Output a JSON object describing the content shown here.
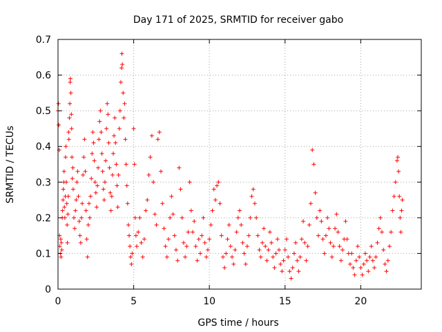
{
  "chart_data": {
    "type": "scatter",
    "title": "Day 171 of 2025, SRMTID for receiver gabo",
    "xlabel": "GPS time / hours",
    "ylabel": "SRMTID / TECUs",
    "xlim": [
      0,
      24
    ],
    "ylim": [
      0,
      0.7
    ],
    "xticks": [
      0,
      5,
      10,
      15,
      20
    ],
    "yticks": [
      0,
      0.1,
      0.2,
      0.3,
      0.4,
      0.5,
      0.6,
      0.7
    ],
    "xtick_labels": [
      "0",
      "5",
      "10",
      "15",
      "20"
    ],
    "ytick_labels": [
      "0",
      "0.1",
      "0.2",
      "0.3",
      "0.4",
      "0.5",
      "0.6",
      "0.7"
    ],
    "grid": true,
    "marker": "+",
    "color": "#ff0000",
    "series": [
      {
        "name": "SRMTID",
        "points": [
          [
            0.0,
            0.5
          ],
          [
            0.03,
            0.52
          ],
          [
            0.05,
            0.46
          ],
          [
            0.08,
            0.39
          ],
          [
            0.1,
            0.15
          ],
          [
            0.12,
            0.12
          ],
          [
            0.15,
            0.1
          ],
          [
            0.18,
            0.14
          ],
          [
            0.2,
            0.09
          ],
          [
            0.22,
            0.13
          ],
          [
            0.25,
            0.11
          ],
          [
            0.28,
            0.2
          ],
          [
            0.3,
            0.22
          ],
          [
            0.33,
            0.25
          ],
          [
            0.35,
            0.28
          ],
          [
            0.38,
            0.3
          ],
          [
            0.4,
            0.33
          ],
          [
            0.42,
            0.23
          ],
          [
            0.45,
            0.2
          ],
          [
            0.48,
            0.26
          ],
          [
            0.5,
            0.37
          ],
          [
            0.52,
            0.4
          ],
          [
            0.55,
            0.3
          ],
          [
            0.58,
            0.24
          ],
          [
            0.6,
            0.18
          ],
          [
            0.62,
            0.13
          ],
          [
            0.65,
            0.21
          ],
          [
            0.68,
            0.26
          ],
          [
            0.7,
            0.44
          ],
          [
            0.72,
            0.42
          ],
          [
            0.75,
            0.48
          ],
          [
            0.78,
            0.52
          ],
          [
            0.8,
            0.58
          ],
          [
            0.82,
            0.59
          ],
          [
            0.85,
            0.55
          ],
          [
            0.88,
            0.49
          ],
          [
            0.9,
            0.45
          ],
          [
            0.92,
            0.37
          ],
          [
            0.95,
            0.31
          ],
          [
            0.98,
            0.34
          ],
          [
            1.0,
            0.28
          ],
          [
            1.05,
            0.2
          ],
          [
            1.1,
            0.17
          ],
          [
            1.15,
            0.22
          ],
          [
            1.2,
            0.25
          ],
          [
            1.25,
            0.3
          ],
          [
            1.3,
            0.33
          ],
          [
            1.35,
            0.26
          ],
          [
            1.4,
            0.19
          ],
          [
            1.45,
            0.15
          ],
          [
            1.5,
            0.13
          ],
          [
            1.55,
            0.2
          ],
          [
            1.6,
            0.24
          ],
          [
            1.65,
            0.32
          ],
          [
            1.7,
            0.37
          ],
          [
            1.75,
            0.42
          ],
          [
            1.8,
            0.33
          ],
          [
            1.85,
            0.22
          ],
          [
            1.9,
            0.14
          ],
          [
            1.95,
            0.09
          ],
          [
            2.0,
            0.18
          ],
          [
            2.05,
            0.24
          ],
          [
            2.1,
            0.2
          ],
          [
            2.15,
            0.26
          ],
          [
            2.2,
            0.31
          ],
          [
            2.25,
            0.38
          ],
          [
            2.3,
            0.44
          ],
          [
            2.35,
            0.41
          ],
          [
            2.4,
            0.36
          ],
          [
            2.45,
            0.3
          ],
          [
            2.5,
            0.27
          ],
          [
            2.55,
            0.23
          ],
          [
            2.6,
            0.29
          ],
          [
            2.65,
            0.34
          ],
          [
            2.7,
            0.42
          ],
          [
            2.75,
            0.47
          ],
          [
            2.8,
            0.5
          ],
          [
            2.85,
            0.44
          ],
          [
            2.9,
            0.38
          ],
          [
            2.95,
            0.33
          ],
          [
            3.0,
            0.28
          ],
          [
            3.05,
            0.25
          ],
          [
            3.1,
            0.3
          ],
          [
            3.15,
            0.36
          ],
          [
            3.2,
            0.45
          ],
          [
            3.25,
            0.52
          ],
          [
            3.3,
            0.49
          ],
          [
            3.35,
            0.41
          ],
          [
            3.4,
            0.34
          ],
          [
            3.45,
            0.27
          ],
          [
            3.5,
            0.22
          ],
          [
            3.55,
            0.26
          ],
          [
            3.6,
            0.32
          ],
          [
            3.65,
            0.38
          ],
          [
            3.7,
            0.43
          ],
          [
            3.75,
            0.48
          ],
          [
            3.8,
            0.41
          ],
          [
            3.85,
            0.35
          ],
          [
            3.9,
            0.29
          ],
          [
            3.95,
            0.23
          ],
          [
            4.0,
            0.32
          ],
          [
            4.05,
            0.45
          ],
          [
            4.1,
            0.5
          ],
          [
            4.15,
            0.58
          ],
          [
            4.2,
            0.62
          ],
          [
            4.22,
            0.66
          ],
          [
            4.25,
            0.63
          ],
          [
            4.3,
            0.55
          ],
          [
            4.35,
            0.48
          ],
          [
            4.4,
            0.52
          ],
          [
            4.45,
            0.42
          ],
          [
            4.5,
            0.35
          ],
          [
            4.55,
            0.29
          ],
          [
            4.6,
            0.24
          ],
          [
            4.65,
            0.18
          ],
          [
            4.7,
            0.15
          ],
          [
            4.75,
            0.12
          ],
          [
            4.8,
            0.09
          ],
          [
            4.85,
            0.07
          ],
          [
            4.9,
            0.1
          ],
          [
            5.0,
            0.45
          ],
          [
            5.05,
            0.35
          ],
          [
            5.1,
            0.2
          ],
          [
            5.15,
            0.15
          ],
          [
            5.2,
            0.12
          ],
          [
            5.3,
            0.16
          ],
          [
            5.4,
            0.2
          ],
          [
            5.5,
            0.13
          ],
          [
            5.6,
            0.09
          ],
          [
            5.7,
            0.14
          ],
          [
            5.8,
            0.22
          ],
          [
            5.9,
            0.25
          ],
          [
            6.0,
            0.32
          ],
          [
            6.1,
            0.37
          ],
          [
            6.2,
            0.43
          ],
          [
            6.3,
            0.3
          ],
          [
            6.4,
            0.21
          ],
          [
            6.5,
            0.18
          ],
          [
            6.6,
            0.42
          ],
          [
            6.7,
            0.44
          ],
          [
            6.8,
            0.33
          ],
          [
            6.9,
            0.24
          ],
          [
            7.0,
            0.17
          ],
          [
            7.1,
            0.12
          ],
          [
            7.2,
            0.09
          ],
          [
            7.3,
            0.14
          ],
          [
            7.4,
            0.2
          ],
          [
            7.5,
            0.26
          ],
          [
            7.6,
            0.21
          ],
          [
            7.7,
            0.15
          ],
          [
            7.8,
            0.11
          ],
          [
            7.9,
            0.08
          ],
          [
            8.0,
            0.34
          ],
          [
            8.1,
            0.28
          ],
          [
            8.2,
            0.2
          ],
          [
            8.3,
            0.13
          ],
          [
            8.4,
            0.09
          ],
          [
            8.5,
            0.12
          ],
          [
            8.6,
            0.16
          ],
          [
            8.7,
            0.3
          ],
          [
            8.8,
            0.22
          ],
          [
            8.9,
            0.16
          ],
          [
            9.0,
            0.19
          ],
          [
            9.1,
            0.12
          ],
          [
            9.2,
            0.08
          ],
          [
            9.3,
            0.14
          ],
          [
            9.4,
            0.1
          ],
          [
            9.5,
            0.15
          ],
          [
            9.6,
            0.2
          ],
          [
            9.7,
            0.13
          ],
          [
            9.8,
            0.09
          ],
          [
            9.9,
            0.11
          ],
          [
            10.0,
            0.14
          ],
          [
            10.1,
            0.18
          ],
          [
            10.2,
            0.22
          ],
          [
            10.3,
            0.28
          ],
          [
            10.4,
            0.25
          ],
          [
            10.5,
            0.29
          ],
          [
            10.6,
            0.3
          ],
          [
            10.7,
            0.24
          ],
          [
            10.8,
            0.15
          ],
          [
            10.9,
            0.09
          ],
          [
            11.0,
            0.06
          ],
          [
            11.1,
            0.1
          ],
          [
            11.2,
            0.14
          ],
          [
            11.3,
            0.18
          ],
          [
            11.4,
            0.12
          ],
          [
            11.5,
            0.09
          ],
          [
            11.6,
            0.07
          ],
          [
            11.7,
            0.11
          ],
          [
            11.8,
            0.16
          ],
          [
            11.9,
            0.2
          ],
          [
            12.0,
            0.22
          ],
          [
            12.1,
            0.18
          ],
          [
            12.2,
            0.13
          ],
          [
            12.3,
            0.1
          ],
          [
            12.4,
            0.07
          ],
          [
            12.5,
            0.12
          ],
          [
            12.6,
            0.15
          ],
          [
            12.7,
            0.2
          ],
          [
            12.8,
            0.26
          ],
          [
            12.9,
            0.28
          ],
          [
            13.0,
            0.24
          ],
          [
            13.1,
            0.2
          ],
          [
            13.2,
            0.15
          ],
          [
            13.3,
            0.11
          ],
          [
            13.4,
            0.09
          ],
          [
            13.5,
            0.13
          ],
          [
            13.6,
            0.17
          ],
          [
            13.7,
            0.12
          ],
          [
            13.8,
            0.08
          ],
          [
            13.9,
            0.11
          ],
          [
            14.0,
            0.16
          ],
          [
            14.1,
            0.13
          ],
          [
            14.2,
            0.09
          ],
          [
            14.3,
            0.06
          ],
          [
            14.4,
            0.1
          ],
          [
            14.5,
            0.14
          ],
          [
            14.6,
            0.11
          ],
          [
            14.7,
            0.07
          ],
          [
            14.8,
            0.05
          ],
          [
            14.9,
            0.08
          ],
          [
            15.0,
            0.11
          ],
          [
            15.1,
            0.14
          ],
          [
            15.2,
            0.09
          ],
          [
            15.3,
            0.05
          ],
          [
            15.4,
            0.03
          ],
          [
            15.5,
            0.06
          ],
          [
            15.6,
            0.1
          ],
          [
            15.7,
            0.13
          ],
          [
            15.8,
            0.08
          ],
          [
            15.9,
            0.05
          ],
          [
            16.0,
            0.09
          ],
          [
            16.1,
            0.14
          ],
          [
            16.2,
            0.19
          ],
          [
            16.3,
            0.13
          ],
          [
            16.4,
            0.08
          ],
          [
            16.5,
            0.12
          ],
          [
            16.6,
            0.18
          ],
          [
            16.7,
            0.24
          ],
          [
            16.8,
            0.39
          ],
          [
            16.9,
            0.35
          ],
          [
            17.0,
            0.27
          ],
          [
            17.1,
            0.2
          ],
          [
            17.2,
            0.15
          ],
          [
            17.3,
            0.22
          ],
          [
            17.4,
            0.19
          ],
          [
            17.5,
            0.14
          ],
          [
            17.6,
            0.1
          ],
          [
            17.7,
            0.15
          ],
          [
            17.8,
            0.2
          ],
          [
            17.9,
            0.17
          ],
          [
            18.0,
            0.13
          ],
          [
            18.1,
            0.09
          ],
          [
            18.2,
            0.12
          ],
          [
            18.3,
            0.17
          ],
          [
            18.4,
            0.21
          ],
          [
            18.5,
            0.16
          ],
          [
            18.6,
            0.12
          ],
          [
            18.7,
            0.08
          ],
          [
            18.8,
            0.11
          ],
          [
            18.9,
            0.14
          ],
          [
            19.0,
            0.19
          ],
          [
            19.1,
            0.14
          ],
          [
            19.2,
            0.1
          ],
          [
            19.3,
            0.07
          ],
          [
            19.4,
            0.1
          ],
          [
            19.5,
            0.06
          ],
          [
            19.6,
            0.04
          ],
          [
            19.7,
            0.08
          ],
          [
            19.8,
            0.12
          ],
          [
            19.9,
            0.09
          ],
          [
            20.0,
            0.06
          ],
          [
            20.1,
            0.04
          ],
          [
            20.2,
            0.07
          ],
          [
            20.3,
            0.1
          ],
          [
            20.4,
            0.08
          ],
          [
            20.5,
            0.05
          ],
          [
            20.6,
            0.09
          ],
          [
            20.7,
            0.12
          ],
          [
            20.8,
            0.08
          ],
          [
            20.9,
            0.06
          ],
          [
            21.0,
            0.09
          ],
          [
            21.1,
            0.13
          ],
          [
            21.2,
            0.17
          ],
          [
            21.3,
            0.2
          ],
          [
            21.4,
            0.16
          ],
          [
            21.5,
            0.11
          ],
          [
            21.6,
            0.07
          ],
          [
            21.7,
            0.05
          ],
          [
            21.8,
            0.08
          ],
          [
            21.9,
            0.12
          ],
          [
            22.0,
            0.16
          ],
          [
            22.1,
            0.22
          ],
          [
            22.2,
            0.26
          ],
          [
            22.3,
            0.3
          ],
          [
            22.4,
            0.36
          ],
          [
            22.45,
            0.37
          ],
          [
            22.5,
            0.33
          ],
          [
            22.55,
            0.26
          ],
          [
            22.6,
            0.2
          ],
          [
            22.65,
            0.16
          ],
          [
            22.7,
            0.22
          ],
          [
            22.75,
            0.25
          ]
        ]
      }
    ]
  }
}
